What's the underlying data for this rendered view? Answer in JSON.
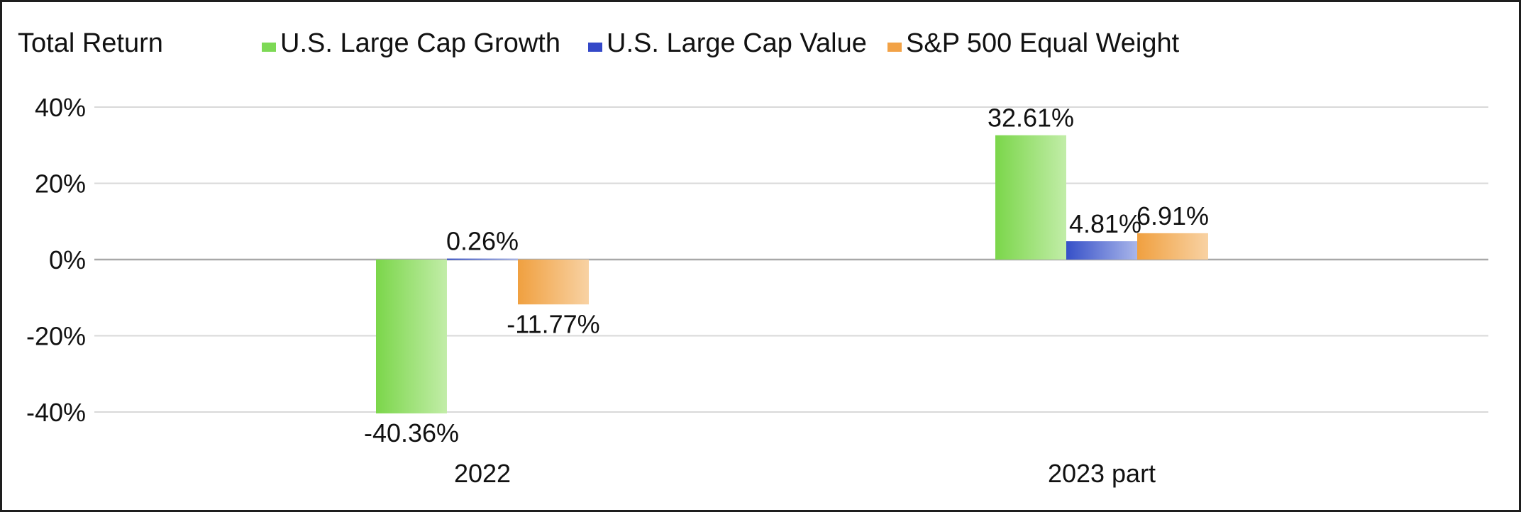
{
  "chart_data": {
    "type": "bar",
    "title": "Total Return",
    "categories": [
      "2022",
      "2023 part"
    ],
    "series": [
      {
        "name": "U.S. Large Cap Growth",
        "values": [
          -40.36,
          32.61
        ],
        "labels": [
          "-40.36%",
          "32.61%"
        ]
      },
      {
        "name": "U.S. Large Cap Value",
        "values": [
          0.26,
          4.81
        ],
        "labels": [
          "0.26%",
          "4.81%"
        ]
      },
      {
        "name": "S&P 500 Equal Weight",
        "values": [
          -11.77,
          6.91
        ],
        "labels": [
          "-11.77%",
          "6.91%"
        ]
      }
    ],
    "yticks": [
      "40%",
      "20%",
      "0%",
      "-20%",
      "-40%"
    ],
    "ytick_values": [
      40,
      20,
      0,
      -20,
      -40
    ],
    "ylim": [
      -40,
      40
    ],
    "grid": true,
    "legend_position": "top",
    "colors": {
      "U.S. Large Cap Growth": [
        "#7bd64a",
        "#c2eda8"
      ],
      "U.S. Large Cap Value": [
        "#3650c8",
        "#a9b6ea"
      ],
      "S&P 500 Equal Weight": [
        "#f0a040",
        "#f8d2a3"
      ]
    },
    "legend_colors": [
      "#7dd955",
      "#3448c8",
      "#f2a246"
    ]
  }
}
